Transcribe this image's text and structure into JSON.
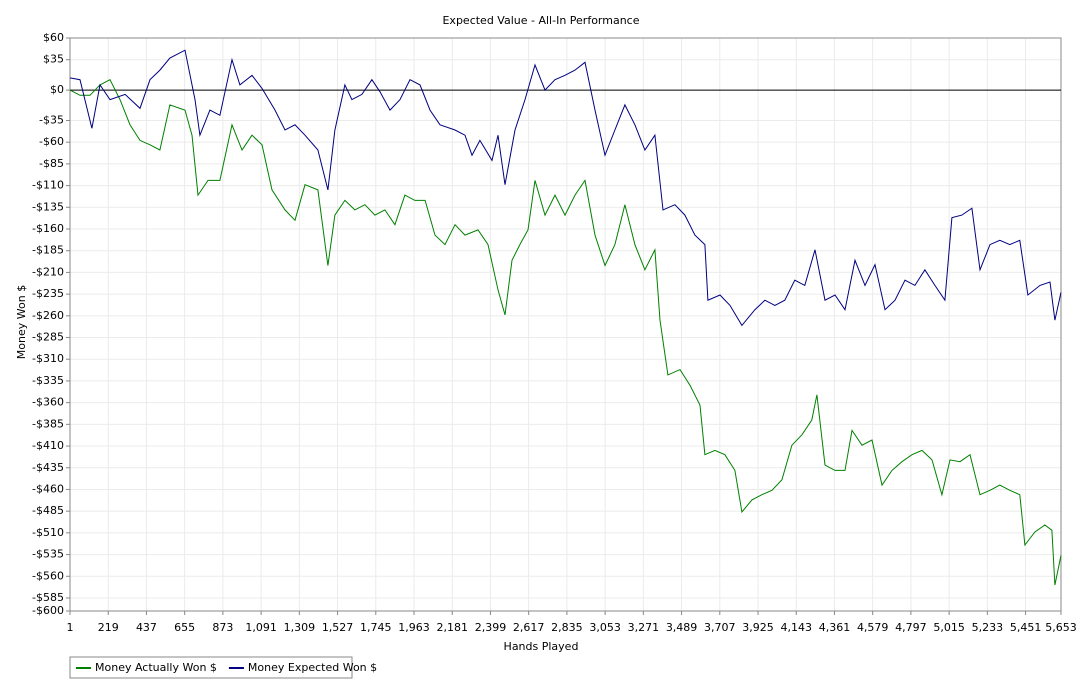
{
  "chart_data": {
    "type": "line",
    "title": "Expected Value - All-In Performance",
    "x_label": "Hands Played",
    "y_label": "Money Won $",
    "xlim": [
      1,
      5653
    ],
    "ylim": [
      -600,
      60
    ],
    "grid": true,
    "legend": "bottom-left",
    "xticks": [
      1,
      219,
      437,
      655,
      873,
      {
        "value": 1091,
        "label": "1,091"
      },
      {
        "value": 1309,
        "label": "1,309"
      },
      {
        "value": 1527,
        "label": "1,527"
      },
      {
        "value": 1745,
        "label": "1,745"
      },
      {
        "value": 1963,
        "label": "1,963"
      },
      {
        "value": 2181,
        "label": "2,181"
      },
      {
        "value": 2399,
        "label": "2,399"
      },
      {
        "value": 2617,
        "label": "2,617"
      },
      {
        "value": 2835,
        "label": "2,835"
      },
      {
        "value": 3053,
        "label": "3,053"
      },
      {
        "value": 3271,
        "label": "3,271"
      },
      {
        "value": 3489,
        "label": "3,489"
      },
      {
        "value": 3707,
        "label": "3,707"
      },
      {
        "value": 3925,
        "label": "3,925"
      },
      {
        "value": 4143,
        "label": "4,143"
      },
      {
        "value": 4361,
        "label": "4,361"
      },
      {
        "value": 4579,
        "label": "4,579"
      },
      {
        "value": 4797,
        "label": "4,797"
      },
      {
        "value": 5015,
        "label": "5,015"
      },
      {
        "value": 5233,
        "label": "5,233"
      },
      {
        "value": 5451,
        "label": "5,451"
      },
      {
        "value": 5653,
        "label": "5,653"
      }
    ],
    "yticks": [
      {
        "value": 60,
        "label": "$60"
      },
      {
        "value": 35,
        "label": "$35"
      },
      {
        "value": 0,
        "label": "$0"
      },
      {
        "value": -35,
        "label": "-$35"
      },
      {
        "value": -60,
        "label": "-$60"
      },
      {
        "value": -85,
        "label": "-$85"
      },
      {
        "value": -110,
        "label": "-$110"
      },
      {
        "value": -135,
        "label": "-$135"
      },
      {
        "value": -160,
        "label": "-$160"
      },
      {
        "value": -185,
        "label": "-$185"
      },
      {
        "value": -210,
        "label": "-$210"
      },
      {
        "value": -235,
        "label": "-$235"
      },
      {
        "value": -260,
        "label": "-$260"
      },
      {
        "value": -285,
        "label": "-$285"
      },
      {
        "value": -310,
        "label": "-$310"
      },
      {
        "value": -335,
        "label": "-$335"
      },
      {
        "value": -360,
        "label": "-$360"
      },
      {
        "value": -385,
        "label": "-$385"
      },
      {
        "value": -410,
        "label": "-$410"
      },
      {
        "value": -435,
        "label": "-$435"
      },
      {
        "value": -460,
        "label": "-$460"
      },
      {
        "value": -485,
        "label": "-$485"
      },
      {
        "value": -510,
        "label": "-$510"
      },
      {
        "value": -535,
        "label": "-$535"
      },
      {
        "value": -560,
        "label": "-$560"
      },
      {
        "value": -585,
        "label": "-$585"
      },
      {
        "value": -600,
        "label": "-$600"
      }
    ],
    "series": [
      {
        "name": "Money Actually Won $",
        "color": "#008000",
        "x": [
          1,
          58,
          115,
          172,
          229,
          286,
          343,
          400,
          457,
          514,
          571,
          657,
          697,
          731,
          788,
          856,
          925,
          982,
          1039,
          1096,
          1153,
          1227,
          1284,
          1341,
          1415,
          1472,
          1512,
          1569,
          1626,
          1683,
          1740,
          1797,
          1854,
          1911,
          1968,
          2026,
          2083,
          2140,
          2197,
          2254,
          2328,
          2385,
          2442,
          2482,
          2522,
          2567,
          2613,
          2653,
          2710,
          2767,
          2824,
          2881,
          2938,
          2995,
          3052,
          3109,
          3166,
          3223,
          3280,
          3337,
          3366,
          3411,
          3480,
          3537,
          3594,
          3622,
          3679,
          3736,
          3793,
          3833,
          3890,
          3947,
          4004,
          4061,
          4118,
          4175,
          4232,
          4261,
          4307,
          4364,
          4421,
          4461,
          4518,
          4575,
          4632,
          4689,
          4746,
          4803,
          4860,
          4917,
          4974,
          5020,
          5077,
          5134,
          5191,
          5248,
          5304,
          5361,
          5418,
          5447,
          5504,
          5561,
          5601,
          5618,
          5653
        ],
        "values": [
          0,
          -6,
          -6,
          6,
          12,
          -11,
          -40,
          -58,
          -63,
          -69,
          -17,
          -23,
          -52,
          -121,
          -104,
          -104,
          -40,
          -69,
          -52,
          -63,
          -115,
          -138,
          -150,
          -109,
          -115,
          -202,
          -144,
          -127,
          -138,
          -132,
          -144,
          -138,
          -155,
          -121,
          -127,
          -127,
          -167,
          -178,
          -155,
          -167,
          -161,
          -178,
          -230,
          -259,
          -196,
          -178,
          -161,
          -104,
          -144,
          -121,
          -144,
          -121,
          -104,
          -167,
          -202,
          -178,
          -132,
          -178,
          -207,
          -184,
          -265,
          -328,
          -322,
          -340,
          -363,
          -420,
          -415,
          -420,
          -438,
          -486,
          -472,
          -466,
          -461,
          -449,
          -409,
          -397,
          -380,
          -351,
          -432,
          -438,
          -438,
          -392,
          -409,
          -403,
          -455,
          -438,
          -428,
          -420,
          -415,
          -426,
          -466,
          -426,
          -428,
          -420,
          -466,
          -461,
          -455,
          -461,
          -466,
          -524,
          -509,
          -501,
          -507,
          -570,
          -536
        ]
      },
      {
        "name": "Money Expected Won $",
        "color": "#000080",
        "x": [
          1,
          58,
          126,
          172,
          229,
          315,
          400,
          457,
          514,
          571,
          657,
          714,
          742,
          799,
          856,
          925,
          970,
          1039,
          1096,
          1170,
          1227,
          1284,
          1341,
          1415,
          1472,
          1512,
          1569,
          1609,
          1666,
          1723,
          1769,
          1826,
          1883,
          1940,
          1997,
          2054,
          2111,
          2197,
          2254,
          2294,
          2339,
          2408,
          2442,
          2482,
          2539,
          2596,
          2653,
          2710,
          2767,
          2824,
          2881,
          2938,
          2995,
          3052,
          3109,
          3166,
          3223,
          3280,
          3337,
          3383,
          3451,
          3508,
          3565,
          3622,
          3639,
          3708,
          3765,
          3833,
          3907,
          3964,
          4021,
          4078,
          4135,
          4192,
          4250,
          4307,
          4364,
          4421,
          4478,
          4535,
          4592,
          4649,
          4706,
          4763,
          4820,
          4877,
          4934,
          4991,
          5031,
          5088,
          5145,
          5191,
          5248,
          5304,
          5361,
          5418,
          5464,
          5533,
          5590,
          5618,
          5653
        ],
        "values": [
          14,
          12,
          -44,
          6,
          -11,
          -5,
          -21,
          12,
          23,
          37,
          46,
          -11,
          -52,
          -23,
          -29,
          35,
          6,
          17,
          2,
          -23,
          -46,
          -40,
          -52,
          -69,
          -115,
          -46,
          6,
          -11,
          -5,
          12,
          -2,
          -23,
          -11,
          12,
          6,
          -23,
          -40,
          -46,
          -52,
          -75,
          -58,
          -81,
          -52,
          -109,
          -46,
          -11,
          29,
          0,
          12,
          17,
          23,
          32,
          -23,
          -75,
          -46,
          -17,
          -40,
          -69,
          -52,
          -138,
          -132,
          -144,
          -167,
          -178,
          -242,
          -236,
          -248,
          -271,
          -253,
          -242,
          -248,
          -242,
          -219,
          -225,
          -184,
          -242,
          -236,
          -253,
          -196,
          -225,
          -201,
          -253,
          -242,
          -219,
          -225,
          -207,
          -225,
          -242,
          -147,
          -144,
          -136,
          -207,
          -178,
          -173,
          -178,
          -173,
          -236,
          -225,
          -221,
          -265,
          -233
        ]
      }
    ]
  }
}
